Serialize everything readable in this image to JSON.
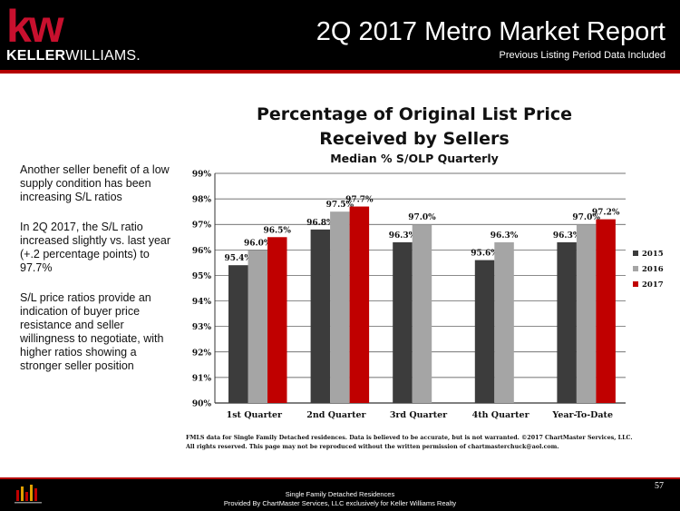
{
  "brand": {
    "name_bold": "KELLER",
    "name_light": "WILLIAMS.",
    "mark": "kw"
  },
  "header": {
    "title": "2Q 2017 Metro Market Report",
    "subtitle": "Previous Listing Period Data Included"
  },
  "sidebar": {
    "paragraphs": [
      "Another seller benefit of a low supply condition has been increasing S/L ratios",
      "In 2Q 2017, the S/L ratio increased slightly vs. last year (+.2 percentage points) to 97.7%",
      "S/L price ratios provide an indication of buyer price resistance and seller willingness to negotiate, with higher ratios showing a stronger seller position"
    ]
  },
  "chart_data": {
    "type": "bar",
    "title": "Percentage of Original List Price Received by Sellers",
    "title_lines": [
      "Percentage of Original List Price",
      "Received by Sellers"
    ],
    "subtitle": "Median % S/OLP Quarterly",
    "categories": [
      "1st Quarter",
      "2nd Quarter",
      "3rd Quarter",
      "4th Quarter",
      "Year-To-Date"
    ],
    "series": [
      {
        "name": "2015",
        "color": "#3c3c3c",
        "values": [
          95.4,
          96.8,
          96.3,
          95.6,
          96.3
        ],
        "labels": [
          "95.4%",
          "96.8%",
          "96.3%",
          "95.6%",
          "96.3%"
        ]
      },
      {
        "name": "2016",
        "color": "#a5a5a5",
        "values": [
          96.0,
          97.5,
          97.0,
          96.3,
          97.0
        ],
        "labels": [
          "96.0%",
          "97.5%",
          "97.0%",
          "96.3%",
          "97.0%"
        ]
      },
      {
        "name": "2017",
        "color": "#c00000",
        "values": [
          96.5,
          97.7,
          null,
          null,
          97.2
        ],
        "labels": [
          "96.5%",
          "97.7%",
          "",
          "",
          "97.2%"
        ]
      }
    ],
    "ylim": [
      90,
      99
    ],
    "yticks": [
      "90%",
      "91%",
      "92%",
      "93%",
      "94%",
      "95%",
      "96%",
      "97%",
      "98%",
      "99%"
    ],
    "grid": true,
    "legend_position": "right",
    "footnote_lines": [
      "FMLS data for Single Family Detached residences.  Data is believed to be accurate, but is not warranted.  ©2017  ChartMaster Services, LLC.",
      "All rights reserved. This page may not be reproduced without the written permission of chartmasterchuck@aol.com."
    ]
  },
  "footer": {
    "line1": "Single Family Detached Residences",
    "line2": "Provided By ChartMaster Services, LLC exclusively for Keller Williams Realty",
    "page_number": "57"
  }
}
